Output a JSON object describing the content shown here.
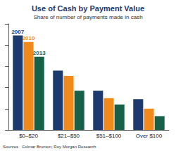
{
  "chart_data": {
    "type": "bar",
    "title": "Use of Cash by Payment Value",
    "subtitle": "Share of number of payments made in cash",
    "categories": [
      "$0–$20",
      "$21–$50",
      "$51–$100",
      "Over $100"
    ],
    "series": [
      {
        "name": "2007",
        "color": "#1c3a6e",
        "values": [
          89,
          56,
          37,
          29
        ]
      },
      {
        "name": "2010",
        "color": "#f08a1d",
        "values": [
          83,
          51,
          30,
          20
        ]
      },
      {
        "name": "2013",
        "color": "#17604a",
        "values": [
          69,
          37,
          24,
          13
        ]
      }
    ],
    "ylim": [
      0,
      100
    ],
    "yticks": [
      0,
      20,
      40,
      60,
      80,
      100
    ],
    "grid": false,
    "tick_labels": "x",
    "source_label": "Sources",
    "source": "Colmar Brunton; Roy Morgan Research"
  }
}
